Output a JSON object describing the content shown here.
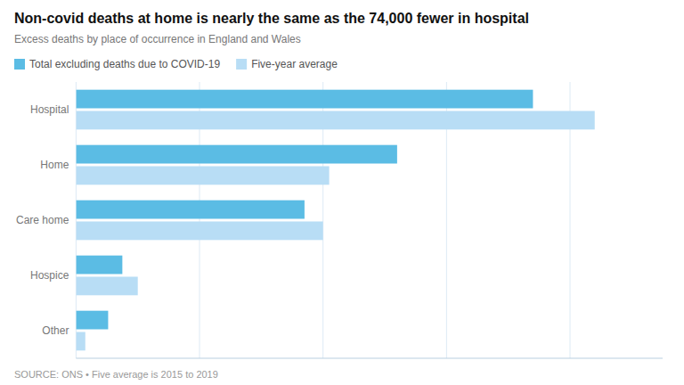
{
  "chart_data": {
    "type": "bar",
    "orientation": "horizontal",
    "title": "Non-covid deaths at home is nearly the same as the 74,000 fewer in hospital",
    "subtitle": "Excess deaths by place of occurrence in England and Wales",
    "annotations": [
      "SOURCE: ONS • Five average is 2015 to 2019"
    ],
    "categories": [
      "Hospital",
      "Home",
      "Care home",
      "Hospice",
      "Other"
    ],
    "series": [
      {
        "name": "Total excluding deaths due to COVID-19",
        "color": "#5bbce4",
        "values": [
          74000,
          52000,
          37000,
          7500,
          5200
        ]
      },
      {
        "name": "Five-year average",
        "color": "#b8ddf5",
        "values": [
          84000,
          41000,
          40000,
          10000,
          1500
        ]
      }
    ],
    "xlim": [
      0,
      95000
    ],
    "xticks": [
      0,
      20000,
      40000,
      60000,
      80000
    ],
    "grid": true,
    "legend": "upper left",
    "tick_labels": "y"
  }
}
